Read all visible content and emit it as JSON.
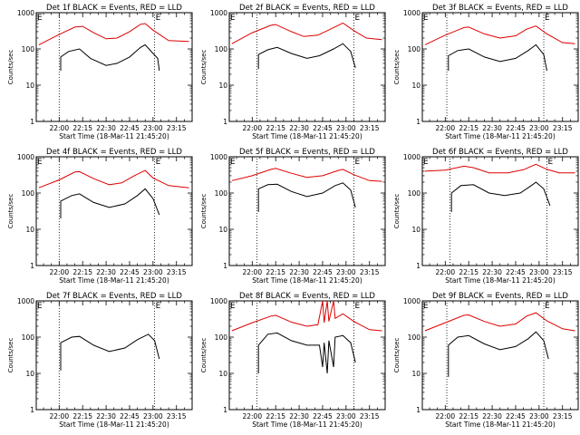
{
  "chart_data": {
    "type": "line",
    "y_scale": "log",
    "ylim": [
      1,
      1000
    ],
    "x_range": [
      "21:45:20",
      "23:25:00"
    ],
    "ylabel": "Counts/sec",
    "xlabel": "Start Time (18-Mar-11 21:45:20)",
    "y_ticks": [
      "1",
      "10",
      "100",
      "1000"
    ],
    "x_ticks": [
      {
        "label": "22:00",
        "time": "22:00"
      },
      {
        "label": "22:15",
        "time": "22:15"
      },
      {
        "label": "22:30",
        "time": "22:30"
      },
      {
        "label": "22:45",
        "time": "22:45"
      },
      {
        "label": "23:00",
        "time": "23:00"
      },
      {
        "label": "23:15",
        "time": "23:15"
      }
    ],
    "series_colors": {
      "events": "#000000",
      "lld": "#dd0000"
    },
    "panels": [
      {
        "title": "Det 1f BLACK = Events, RED = LLD",
        "night_marker": "E",
        "markers": [
          "22:00",
          "23:01"
        ],
        "lld": [
          {
            "time": "21:47",
            "value": 130
          },
          {
            "time": "22:00",
            "value": 250
          },
          {
            "time": "22:10",
            "value": 400
          },
          {
            "time": "22:15",
            "value": 420
          },
          {
            "time": "22:22",
            "value": 280
          },
          {
            "time": "22:30",
            "value": 190
          },
          {
            "time": "22:37",
            "value": 200
          },
          {
            "time": "22:45",
            "value": 300
          },
          {
            "time": "22:52",
            "value": 480
          },
          {
            "time": "22:55",
            "value": 500
          },
          {
            "time": "23:00",
            "value": 330
          },
          {
            "time": "23:10",
            "value": 170
          },
          {
            "time": "23:23",
            "value": 160
          }
        ],
        "events": [
          {
            "time": "22:01",
            "value": 25
          },
          {
            "time": "22:01",
            "value": 60
          },
          {
            "time": "22:06",
            "value": 85
          },
          {
            "time": "22:13",
            "value": 100
          },
          {
            "time": "22:20",
            "value": 55
          },
          {
            "time": "22:30",
            "value": 35
          },
          {
            "time": "22:37",
            "value": 40
          },
          {
            "time": "22:45",
            "value": 60
          },
          {
            "time": "22:52",
            "value": 110
          },
          {
            "time": "22:55",
            "value": 130
          },
          {
            "time": "23:00",
            "value": 75
          },
          {
            "time": "23:03",
            "value": 55
          },
          {
            "time": "23:04",
            "value": 25
          }
        ]
      },
      {
        "title": "Det 2f BLACK = Events, RED = LLD",
        "night_marker": "E",
        "markers": [
          "22:03",
          "23:05"
        ],
        "lld": [
          {
            "time": "21:47",
            "value": 140
          },
          {
            "time": "22:00",
            "value": 280
          },
          {
            "time": "22:12",
            "value": 450
          },
          {
            "time": "22:15",
            "value": 470
          },
          {
            "time": "22:25",
            "value": 300
          },
          {
            "time": "22:33",
            "value": 220
          },
          {
            "time": "22:42",
            "value": 240
          },
          {
            "time": "22:50",
            "value": 350
          },
          {
            "time": "22:58",
            "value": 520
          },
          {
            "time": "23:05",
            "value": 320
          },
          {
            "time": "23:13",
            "value": 200
          },
          {
            "time": "23:23",
            "value": 180
          }
        ],
        "events": [
          {
            "time": "22:04",
            "value": 28
          },
          {
            "time": "22:04",
            "value": 70
          },
          {
            "time": "22:10",
            "value": 95
          },
          {
            "time": "22:16",
            "value": 110
          },
          {
            "time": "22:25",
            "value": 75
          },
          {
            "time": "22:35",
            "value": 55
          },
          {
            "time": "22:43",
            "value": 65
          },
          {
            "time": "22:52",
            "value": 100
          },
          {
            "time": "22:58",
            "value": 140
          },
          {
            "time": "23:03",
            "value": 85
          },
          {
            "time": "23:06",
            "value": 30
          }
        ]
      },
      {
        "title": "Det 3f BLACK = Events, RED = LLD",
        "night_marker": "E",
        "markers": [
          "22:01",
          "23:03"
        ],
        "lld": [
          {
            "time": "21:47",
            "value": 130
          },
          {
            "time": "22:00",
            "value": 240
          },
          {
            "time": "22:12",
            "value": 390
          },
          {
            "time": "22:15",
            "value": 400
          },
          {
            "time": "22:25",
            "value": 260
          },
          {
            "time": "22:35",
            "value": 200
          },
          {
            "time": "22:45",
            "value": 230
          },
          {
            "time": "22:52",
            "value": 350
          },
          {
            "time": "22:58",
            "value": 430
          },
          {
            "time": "23:05",
            "value": 260
          },
          {
            "time": "23:15",
            "value": 150
          },
          {
            "time": "23:23",
            "value": 140
          }
        ],
        "events": [
          {
            "time": "22:02",
            "value": 25
          },
          {
            "time": "22:02",
            "value": 65
          },
          {
            "time": "22:08",
            "value": 90
          },
          {
            "time": "22:15",
            "value": 100
          },
          {
            "time": "22:25",
            "value": 60
          },
          {
            "time": "22:35",
            "value": 45
          },
          {
            "time": "22:45",
            "value": 55
          },
          {
            "time": "22:53",
            "value": 90
          },
          {
            "time": "22:58",
            "value": 130
          },
          {
            "time": "23:03",
            "value": 70
          },
          {
            "time": "23:05",
            "value": 25
          }
        ]
      },
      {
        "title": "Det 4f BLACK = Events, RED = LLD",
        "night_marker": "E",
        "markers": [
          "22:00",
          "23:01"
        ],
        "lld": [
          {
            "time": "21:47",
            "value": 140
          },
          {
            "time": "22:00",
            "value": 230
          },
          {
            "time": "22:10",
            "value": 380
          },
          {
            "time": "22:13",
            "value": 390
          },
          {
            "time": "22:22",
            "value": 250
          },
          {
            "time": "22:32",
            "value": 170
          },
          {
            "time": "22:40",
            "value": 190
          },
          {
            "time": "22:48",
            "value": 300
          },
          {
            "time": "22:55",
            "value": 420
          },
          {
            "time": "23:00",
            "value": 260
          },
          {
            "time": "23:10",
            "value": 160
          },
          {
            "time": "23:23",
            "value": 140
          }
        ],
        "events": [
          {
            "time": "22:01",
            "value": 20
          },
          {
            "time": "22:01",
            "value": 60
          },
          {
            "time": "22:08",
            "value": 85
          },
          {
            "time": "22:13",
            "value": 95
          },
          {
            "time": "22:22",
            "value": 55
          },
          {
            "time": "22:32",
            "value": 40
          },
          {
            "time": "22:42",
            "value": 50
          },
          {
            "time": "22:50",
            "value": 85
          },
          {
            "time": "22:55",
            "value": 130
          },
          {
            "time": "23:00",
            "value": 70
          },
          {
            "time": "23:04",
            "value": 25
          }
        ]
      },
      {
        "title": "Det 5f BLACK = Events, RED = LLD",
        "night_marker": "E",
        "markers": [
          "22:03",
          "23:05"
        ],
        "lld": [
          {
            "time": "21:47",
            "value": 220
          },
          {
            "time": "22:00",
            "value": 300
          },
          {
            "time": "22:12",
            "value": 450
          },
          {
            "time": "22:15",
            "value": 480
          },
          {
            "time": "22:25",
            "value": 350
          },
          {
            "time": "22:35",
            "value": 270
          },
          {
            "time": "22:45",
            "value": 300
          },
          {
            "time": "22:55",
            "value": 420
          },
          {
            "time": "22:58",
            "value": 450
          },
          {
            "time": "23:05",
            "value": 320
          },
          {
            "time": "23:15",
            "value": 220
          },
          {
            "time": "23:23",
            "value": 210
          }
        ],
        "events": [
          {
            "time": "22:04",
            "value": 30
          },
          {
            "time": "22:04",
            "value": 130
          },
          {
            "time": "22:10",
            "value": 170
          },
          {
            "time": "22:16",
            "value": 175
          },
          {
            "time": "22:25",
            "value": 110
          },
          {
            "time": "22:35",
            "value": 80
          },
          {
            "time": "22:45",
            "value": 100
          },
          {
            "time": "22:53",
            "value": 160
          },
          {
            "time": "22:58",
            "value": 190
          },
          {
            "time": "23:03",
            "value": 120
          },
          {
            "time": "23:06",
            "value": 40
          }
        ]
      },
      {
        "title": "Det 6f BLACK = Events, RED = LLD",
        "night_marker": "E",
        "markers": [
          "22:03",
          "23:05"
        ],
        "lld": [
          {
            "time": "21:47",
            "value": 400
          },
          {
            "time": "22:00",
            "value": 430
          },
          {
            "time": "22:12",
            "value": 550
          },
          {
            "time": "22:18",
            "value": 500
          },
          {
            "time": "22:28",
            "value": 360
          },
          {
            "time": "22:40",
            "value": 360
          },
          {
            "time": "22:50",
            "value": 440
          },
          {
            "time": "22:58",
            "value": 620
          },
          {
            "time": "23:05",
            "value": 450
          },
          {
            "time": "23:13",
            "value": 360
          },
          {
            "time": "23:23",
            "value": 360
          }
        ],
        "events": [
          {
            "time": "22:04",
            "value": 30
          },
          {
            "time": "22:04",
            "value": 100
          },
          {
            "time": "22:10",
            "value": 160
          },
          {
            "time": "22:18",
            "value": 170
          },
          {
            "time": "22:28",
            "value": 100
          },
          {
            "time": "22:38",
            "value": 85
          },
          {
            "time": "22:48",
            "value": 100
          },
          {
            "time": "22:55",
            "value": 160
          },
          {
            "time": "22:58",
            "value": 200
          },
          {
            "time": "23:03",
            "value": 130
          },
          {
            "time": "23:07",
            "value": 45
          }
        ]
      },
      {
        "title": "Det 7f BLACK = Events, RED = LLD",
        "night_marker": "E",
        "markers": [
          "22:00",
          "23:01"
        ],
        "lld": [],
        "events": [
          {
            "time": "22:01",
            "value": 12
          },
          {
            "time": "22:01",
            "value": 70
          },
          {
            "time": "22:08",
            "value": 100
          },
          {
            "time": "22:13",
            "value": 105
          },
          {
            "time": "22:22",
            "value": 60
          },
          {
            "time": "22:32",
            "value": 40
          },
          {
            "time": "22:42",
            "value": 50
          },
          {
            "time": "22:50",
            "value": 85
          },
          {
            "time": "22:57",
            "value": 120
          },
          {
            "time": "23:01",
            "value": 80
          },
          {
            "time": "23:04",
            "value": 25
          }
        ]
      },
      {
        "title": "Det 8f BLACK = Events, RED = LLD",
        "night_marker": "E",
        "markers": [
          "22:03",
          "23:05"
        ],
        "lld": [
          {
            "time": "21:47",
            "value": 150
          },
          {
            "time": "22:00",
            "value": 250
          },
          {
            "time": "22:12",
            "value": 380
          },
          {
            "time": "22:15",
            "value": 400
          },
          {
            "time": "22:25",
            "value": 260
          },
          {
            "time": "22:35",
            "value": 200
          },
          {
            "time": "22:42",
            "value": 220
          },
          {
            "time": "22:45",
            "value": 1000
          },
          {
            "time": "22:46",
            "value": 250
          },
          {
            "time": "22:48",
            "value": 1000
          },
          {
            "time": "22:49",
            "value": 270
          },
          {
            "time": "22:52",
            "value": 1000
          },
          {
            "time": "22:53",
            "value": 330
          },
          {
            "time": "22:58",
            "value": 440
          },
          {
            "time": "23:05",
            "value": 270
          },
          {
            "time": "23:15",
            "value": 160
          },
          {
            "time": "23:23",
            "value": 150
          }
        ],
        "events": [
          {
            "time": "22:04",
            "value": 10
          },
          {
            "time": "22:04",
            "value": 60
          },
          {
            "time": "22:10",
            "value": 120
          },
          {
            "time": "22:16",
            "value": 130
          },
          {
            "time": "22:25",
            "value": 80
          },
          {
            "time": "22:35",
            "value": 60
          },
          {
            "time": "22:43",
            "value": 60
          },
          {
            "time": "22:45",
            "value": 15
          },
          {
            "time": "22:46",
            "value": 70
          },
          {
            "time": "22:48",
            "value": 10
          },
          {
            "time": "22:49",
            "value": 80
          },
          {
            "time": "22:52",
            "value": 15
          },
          {
            "time": "22:53",
            "value": 100
          },
          {
            "time": "22:58",
            "value": 110
          },
          {
            "time": "23:03",
            "value": 70
          },
          {
            "time": "23:06",
            "value": 20
          }
        ]
      },
      {
        "title": "Det 9f BLACK = Events, RED = LLD",
        "night_marker": "E",
        "markers": [
          "22:01",
          "23:03"
        ],
        "lld": [
          {
            "time": "21:47",
            "value": 150
          },
          {
            "time": "22:00",
            "value": 250
          },
          {
            "time": "22:12",
            "value": 400
          },
          {
            "time": "22:15",
            "value": 410
          },
          {
            "time": "22:25",
            "value": 270
          },
          {
            "time": "22:35",
            "value": 200
          },
          {
            "time": "22:45",
            "value": 230
          },
          {
            "time": "22:52",
            "value": 380
          },
          {
            "time": "22:58",
            "value": 470
          },
          {
            "time": "23:05",
            "value": 280
          },
          {
            "time": "23:15",
            "value": 170
          },
          {
            "time": "23:23",
            "value": 150
          }
        ],
        "events": [
          {
            "time": "22:02",
            "value": 8
          },
          {
            "time": "22:02",
            "value": 60
          },
          {
            "time": "22:08",
            "value": 100
          },
          {
            "time": "22:15",
            "value": 110
          },
          {
            "time": "22:25",
            "value": 65
          },
          {
            "time": "22:35",
            "value": 45
          },
          {
            "time": "22:45",
            "value": 55
          },
          {
            "time": "22:53",
            "value": 90
          },
          {
            "time": "22:58",
            "value": 140
          },
          {
            "time": "23:03",
            "value": 80
          },
          {
            "time": "23:06",
            "value": 25
          }
        ]
      }
    ]
  }
}
